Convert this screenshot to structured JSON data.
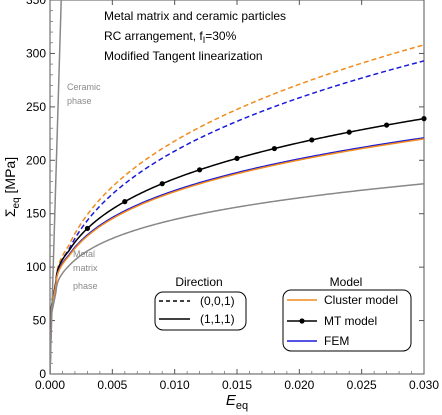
{
  "chart_data": {
    "type": "line",
    "xlabel_main": "E",
    "xlabel_sub": "eq",
    "ylabel_main": "Σ",
    "ylabel_sub": "eq",
    "ylabel_unit": " [MPa]",
    "xlim": [
      0,
      0.03
    ],
    "ylim": [
      0,
      350
    ],
    "x_ticks": [
      0.0,
      0.005,
      0.01,
      0.015,
      0.02,
      0.025,
      0.03
    ],
    "x_tick_labels": [
      "0.000",
      "0.005",
      "0.010",
      "0.015",
      "0.020",
      "0.025",
      "0.030"
    ],
    "y_ticks": [
      0,
      50,
      100,
      150,
      200,
      250,
      300,
      350
    ],
    "y_tick_labels": [
      "0",
      "50",
      "100",
      "150",
      "200",
      "250",
      "300",
      "350"
    ],
    "grid": false,
    "annotations": {
      "line1": "Metal matrix and ceramic particles",
      "line2_pre": "RC arrangement, f",
      "line2_sub": "I",
      "line2_post": "=30%",
      "line3": "Modified Tangent linearization"
    },
    "phase_labels": {
      "ceramic_1": "Ceramic",
      "ceramic_2": "phase",
      "metal_1": "Metal",
      "metal_2": "matrix",
      "metal_3": "phase"
    },
    "legend_direction": {
      "title": "Direction",
      "entries": [
        {
          "label": "(0,0,1)",
          "style": "dashed"
        },
        {
          "label": "(1,1,1)",
          "style": "solid"
        }
      ]
    },
    "legend_model": {
      "title": "Model",
      "entries": [
        {
          "label": "Cluster model",
          "color": "#f28c1c"
        },
        {
          "label": "MT model",
          "color": "#000000"
        },
        {
          "label": "FEM",
          "color": "#1a1adb"
        }
      ]
    },
    "series": [
      {
        "model": "Cluster model",
        "direction": "(0,0,1)",
        "color": "#f28c1c",
        "dash": true,
        "final_value": 308,
        "y_at_0_0015": 120,
        "y_at_0_0005": 88
      },
      {
        "model": "FEM",
        "direction": "(0,0,1)",
        "color": "#1a1adb",
        "dash": true,
        "final_value": 293,
        "y_at_0_0015": 116,
        "y_at_0_0005": 86
      },
      {
        "model": "MT model",
        "direction": "(1,1,1)",
        "color": "#000000",
        "dash": false,
        "markers": true,
        "final_value": 239,
        "y_at_0_0015": 115,
        "y_at_0_0005": 88
      },
      {
        "model": "FEM",
        "direction": "(1,1,1)",
        "color": "#1a1adb",
        "dash": false,
        "final_value": 221,
        "y_at_0_0015": 111,
        "y_at_0_0005": 86
      },
      {
        "model": "Cluster model",
        "direction": "(1,1,1)",
        "color": "#f28c1c",
        "dash": false,
        "final_value": 220,
        "y_at_0_0015": 110,
        "y_at_0_0005": 85
      },
      {
        "name": "Metal matrix phase",
        "color": "#888888",
        "dash": false,
        "final_value": 178,
        "y_at_0_0015": 101,
        "y_at_0_0005": 78
      },
      {
        "name": "Ceramic phase",
        "color": "#888888",
        "dash": false,
        "x": [
          0,
          0.0009
        ],
        "y": [
          0,
          350
        ]
      }
    ],
    "mt_marker_x": [
      0.003,
      0.006,
      0.009,
      0.012,
      0.015,
      0.018,
      0.021,
      0.024,
      0.027,
      0.03
    ]
  }
}
